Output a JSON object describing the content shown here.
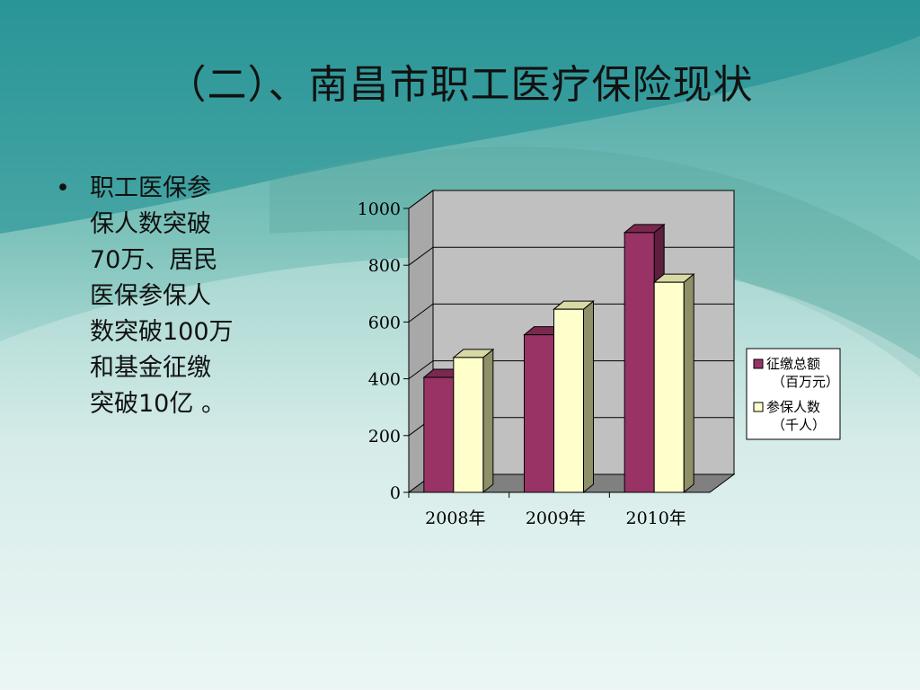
{
  "slide": {
    "title": "（二）、南昌市职工医疗保险现状",
    "bullet_symbol": "•",
    "bullet_text": "职工医保参\n保人数突破\n70万、居民\n医保参保人\n数突破100万\n和基金征缴\n突破10亿 。"
  },
  "chart_data": {
    "type": "bar",
    "categories": [
      "2008年",
      "2009年",
      "2010年"
    ],
    "series": [
      {
        "name": "征缴总额（百万元）",
        "legend_lines": [
          "征缴总额",
          "（百万元）"
        ],
        "values": [
          405,
          555,
          915
        ],
        "color": "#993366",
        "side_color": "#5e1e3e",
        "top_color": "#7a2850"
      },
      {
        "name": "参保人数（千人）",
        "legend_lines": [
          "参保人数",
          "（千人）"
        ],
        "values": [
          475,
          645,
          740
        ],
        "color": "#ffffcc",
        "side_color": "#8f8f68",
        "top_color": "#d9d9a6"
      }
    ],
    "ylim": [
      0,
      1000
    ],
    "yticks": [
      0,
      200,
      400,
      600,
      800,
      1000
    ],
    "grid": true,
    "legend": "right",
    "wall_color": "#c0c0c0",
    "floor_color": "#808080"
  }
}
